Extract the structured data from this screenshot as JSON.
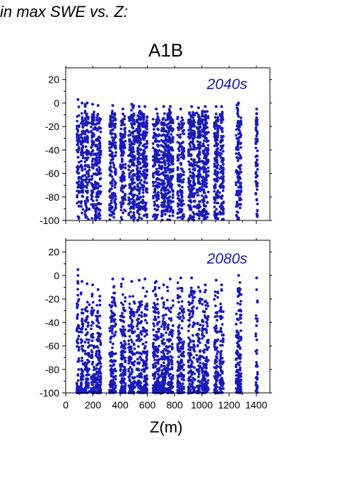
{
  "heading": "in max SWE vs. Z:",
  "scenario": "A1B",
  "colors": {
    "points": "#1a1ab8",
    "frame": "#000000"
  },
  "chart_data": [
    {
      "type": "scatter",
      "panel_label": "2040s",
      "xlabel": "Z(m)",
      "xlim": [
        0,
        1500
      ],
      "ylim": [
        -100,
        30
      ],
      "xticks": [
        0,
        200,
        400,
        600,
        800,
        1000,
        1200,
        1400
      ],
      "yticks": [
        -100,
        -80,
        -60,
        -40,
        -20,
        0,
        20
      ],
      "elevation_bands": [
        {
          "z": [
            80,
            100
          ],
          "top": 3
        },
        {
          "z": [
            110,
            130
          ],
          "top": 0
        },
        {
          "z": [
            140,
            175
          ],
          "top": 0
        },
        {
          "z": [
            185,
            210
          ],
          "top": -1
        },
        {
          "z": [
            215,
            260
          ],
          "top": -2
        },
        {
          "z": [
            320,
            370
          ],
          "top": -2
        },
        {
          "z": [
            400,
            440
          ],
          "top": -5
        },
        {
          "z": [
            460,
            510
          ],
          "top": -1
        },
        {
          "z": [
            520,
            560
          ],
          "top": -3
        },
        {
          "z": [
            565,
            600
          ],
          "top": -3
        },
        {
          "z": [
            640,
            690
          ],
          "top": -5
        },
        {
          "z": [
            700,
            740
          ],
          "top": -3
        },
        {
          "z": [
            745,
            790
          ],
          "top": -3
        },
        {
          "z": [
            820,
            870
          ],
          "top": -5
        },
        {
          "z": [
            900,
            950
          ],
          "top": -3
        },
        {
          "z": [
            960,
            990
          ],
          "top": -4
        },
        {
          "z": [
            1000,
            1050
          ],
          "top": -3
        },
        {
          "z": [
            1090,
            1120
          ],
          "top": -3
        },
        {
          "z": [
            1130,
            1160
          ],
          "top": -3
        },
        {
          "z": [
            1250,
            1290
          ],
          "top": 0
        },
        {
          "z": [
            1395,
            1410
          ],
          "top": -5
        }
      ]
    },
    {
      "type": "scatter",
      "panel_label": "2080s",
      "xlabel": "Z(m)",
      "xlim": [
        0,
        1500
      ],
      "ylim": [
        -100,
        30
      ],
      "xticks": [
        0,
        200,
        400,
        600,
        800,
        1000,
        1200,
        1400
      ],
      "yticks": [
        -100,
        -80,
        -60,
        -40,
        -20,
        0,
        20
      ],
      "elevation_bands": [
        {
          "z": [
            80,
            100
          ],
          "top": 5
        },
        {
          "z": [
            110,
            130
          ],
          "top": -5
        },
        {
          "z": [
            140,
            175
          ],
          "top": -7
        },
        {
          "z": [
            185,
            210
          ],
          "top": -8
        },
        {
          "z": [
            215,
            260
          ],
          "top": -12
        },
        {
          "z": [
            320,
            370
          ],
          "top": -3
        },
        {
          "z": [
            400,
            440
          ],
          "top": -3
        },
        {
          "z": [
            460,
            510
          ],
          "top": -5
        },
        {
          "z": [
            520,
            560
          ],
          "top": -4
        },
        {
          "z": [
            565,
            600
          ],
          "top": -3
        },
        {
          "z": [
            640,
            690
          ],
          "top": -5
        },
        {
          "z": [
            700,
            740
          ],
          "top": -8
        },
        {
          "z": [
            745,
            790
          ],
          "top": -3
        },
        {
          "z": [
            820,
            870
          ],
          "top": -2
        },
        {
          "z": [
            900,
            950
          ],
          "top": -2
        },
        {
          "z": [
            960,
            990
          ],
          "top": -10
        },
        {
          "z": [
            1000,
            1050
          ],
          "top": -8
        },
        {
          "z": [
            1090,
            1120
          ],
          "top": -4
        },
        {
          "z": [
            1130,
            1160
          ],
          "top": -8
        },
        {
          "z": [
            1250,
            1290
          ],
          "top": 0
        },
        {
          "z": [
            1395,
            1410
          ],
          "top": -2
        }
      ]
    }
  ]
}
